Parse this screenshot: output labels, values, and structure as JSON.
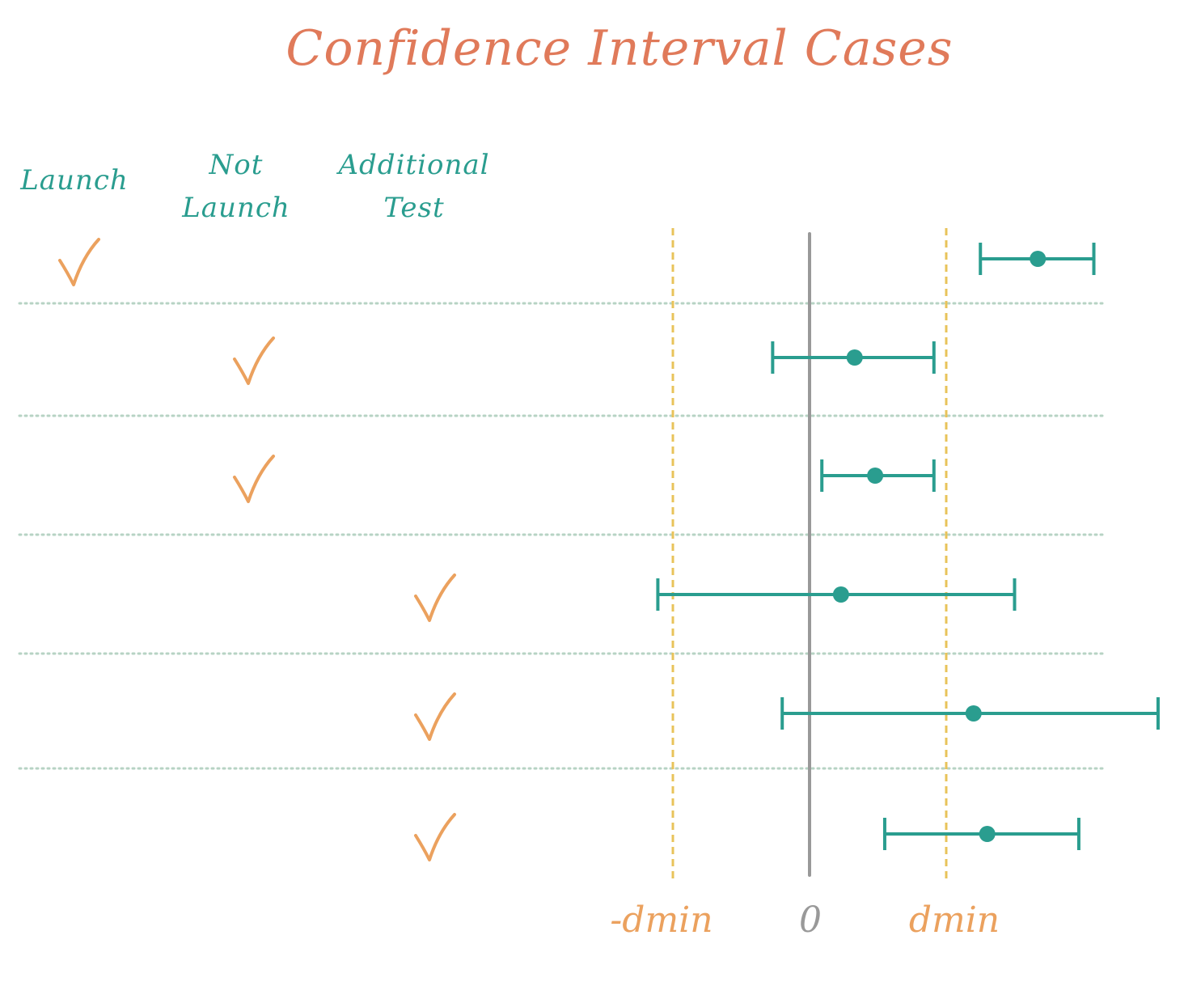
{
  "title": "Confidence Interval Cases",
  "columns": [
    {
      "line1": "Launch",
      "line2": ""
    },
    {
      "line1": "Not",
      "line2": "Launch"
    },
    {
      "line1": "Additional",
      "line2": "Test"
    }
  ],
  "axis": {
    "neg_label": "-dmin",
    "zero_label": "0",
    "pos_label": "dmin"
  },
  "colors": {
    "title": "#e07a5a",
    "header": "#2a9d8f",
    "check": "#eba15e",
    "interval": "#2a9d8f",
    "threshold": "#e8c35a",
    "zero_line": "#999999",
    "divider": "#b7d3c4",
    "axis_label": "#eba15e",
    "zero_label": "#999999"
  },
  "cases": [
    {
      "decision": "Launch",
      "low": 1.25,
      "point": 1.67,
      "high": 2.08
    },
    {
      "decision": "Not Launch",
      "low": -0.27,
      "point": 0.33,
      "high": 0.91
    },
    {
      "decision": "Not Launch",
      "low": 0.09,
      "point": 0.48,
      "high": 0.91
    },
    {
      "decision": "Additional Test",
      "low": -1.11,
      "point": 0.23,
      "high": 1.5
    },
    {
      "decision": "Additional Test",
      "low": -0.2,
      "point": 1.2,
      "high": 2.55
    },
    {
      "decision": "Additional Test",
      "low": 0.55,
      "point": 1.3,
      "high": 1.97
    }
  ]
}
